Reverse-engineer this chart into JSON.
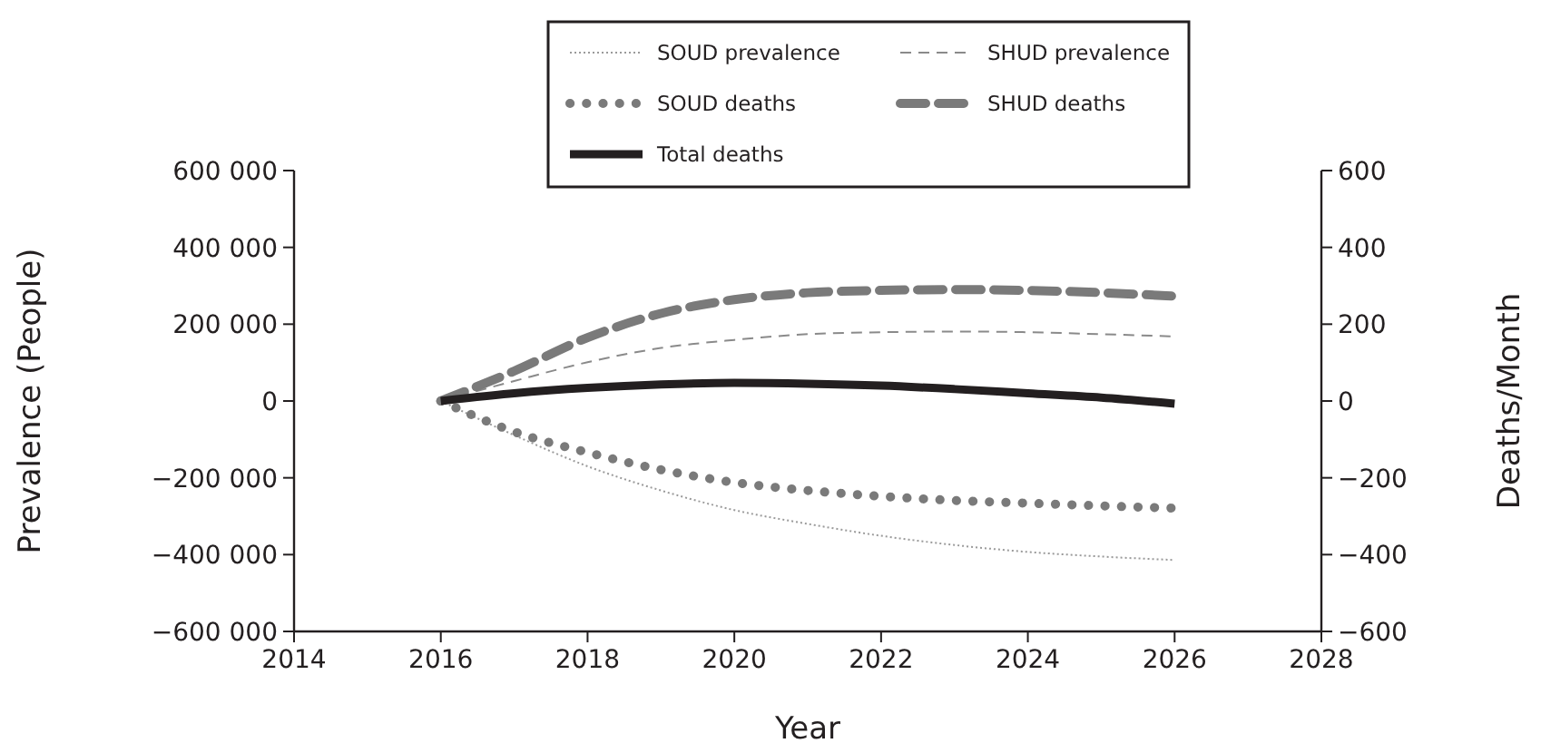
{
  "chart_data": {
    "type": "line",
    "xlabel": "Year",
    "ylabel": "Prevalence (People)",
    "y2label": "Deaths/Month",
    "x": [
      2016,
      2017,
      2018,
      2019,
      2020,
      2021,
      2022,
      2023,
      2024,
      2025,
      2026
    ],
    "xlim": [
      2014,
      2028
    ],
    "xticks": [
      2014,
      2016,
      2018,
      2020,
      2022,
      2024,
      2026,
      2028
    ],
    "ylim": [
      -600000,
      600000
    ],
    "yticks": [
      {
        "value": -600000,
        "label": "−600 000"
      },
      {
        "value": -400000,
        "label": "−400 000"
      },
      {
        "value": -200000,
        "label": "−200 000"
      },
      0,
      {
        "value": 200000,
        "label": "200 000"
      },
      {
        "value": 400000,
        "label": "400 000"
      },
      {
        "value": 600000,
        "label": "600 000"
      }
    ],
    "y2lim": [
      -600,
      600
    ],
    "y2ticks": [
      {
        "value": -600,
        "label": "−600"
      },
      {
        "value": -400,
        "label": "−400"
      },
      {
        "value": -200,
        "label": "−200"
      },
      0,
      200,
      400,
      600
    ],
    "grid": false,
    "legend": "top",
    "marker": "none",
    "series": [
      {
        "name": "SOUD prevalence",
        "color": "#9a9a9a",
        "line_style": "dotted",
        "values": [
          0,
          -89000,
          -170000,
          -233000,
          -284000,
          -320000,
          -351000,
          -375000,
          -393000,
          -405000,
          -414000
        ]
      },
      {
        "name": "SHUD prevalence",
        "color": "#8a8a8a",
        "line_style": "dashed",
        "values": [
          0,
          52000,
          101000,
          138000,
          159000,
          174000,
          179000,
          181000,
          179000,
          174000,
          168000
        ]
      },
      {
        "name": "SOUD deaths",
        "color": "#7a7a7a",
        "line_style": "dotted",
        "axis": "y2",
        "values": [
          0,
          -80,
          -134,
          -179,
          -212,
          -233,
          -248,
          -259,
          -266,
          -273,
          -279
        ]
      },
      {
        "name": "SHUD deaths",
        "color": "#7a7a7a",
        "line_style": "dashed",
        "axis": "y2",
        "values": [
          0,
          78,
          165,
          228,
          264,
          282,
          288,
          290,
          288,
          282,
          273
        ]
      },
      {
        "name": "Total deaths",
        "color": "#231f20",
        "line_style": "solid",
        "axis": "y2",
        "values": [
          0,
          20,
          34,
          43,
          47,
          45,
          40,
          31,
          20,
          9,
          -7
        ]
      }
    ]
  }
}
